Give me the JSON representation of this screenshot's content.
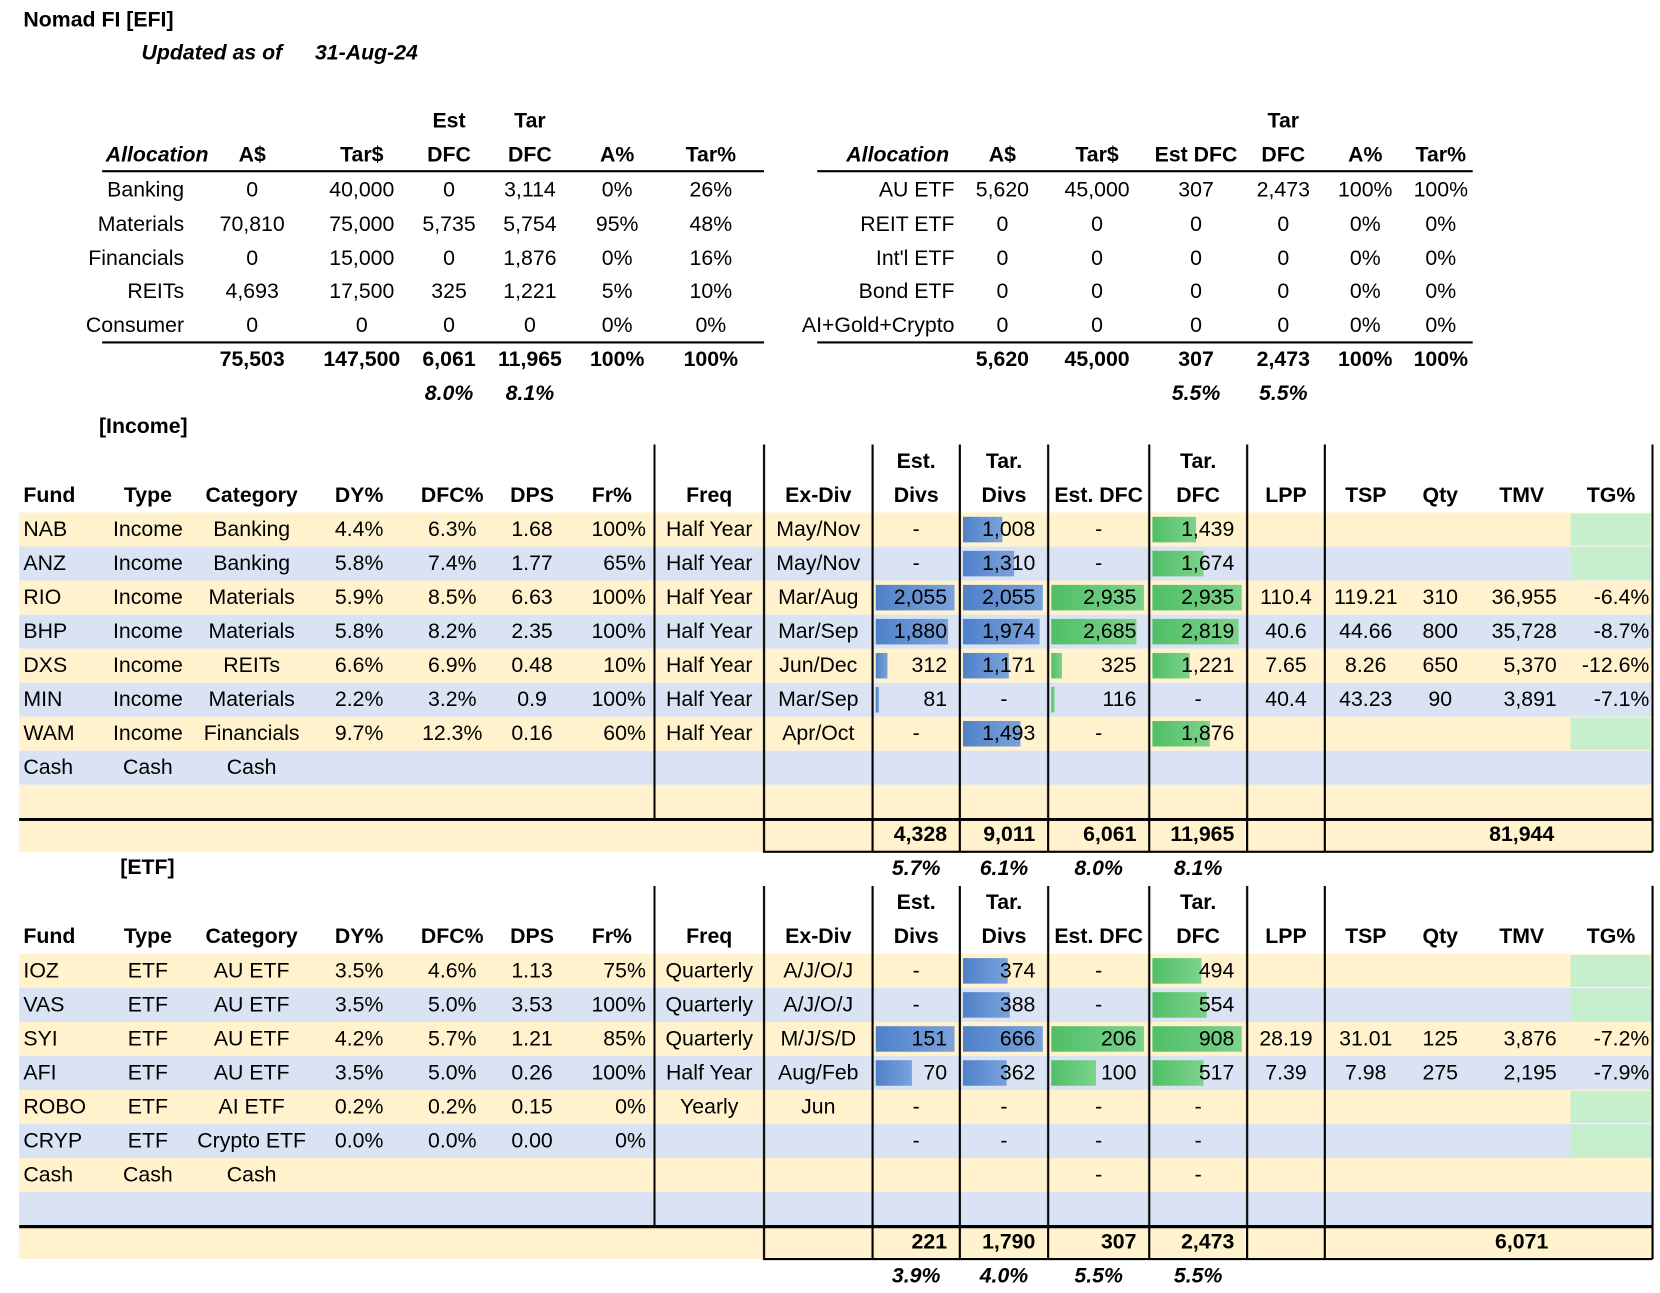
{
  "header": {
    "title": "Nomad FI [EFI]",
    "updated_label": "Updated as of",
    "updated_date": "31-Aug-24"
  },
  "allocation_tables": [
    {
      "headers": [
        "Allocation",
        "A$",
        "Tar$",
        "Est DFC",
        "Tar DFC",
        "A%",
        "Tar%"
      ],
      "rows": [
        [
          "Banking",
          "0",
          "40,000",
          "0",
          "3,114",
          "0%",
          "26%"
        ],
        [
          "Materials",
          "70,810",
          "75,000",
          "5,735",
          "5,754",
          "95%",
          "48%"
        ],
        [
          "Financials",
          "0",
          "15,000",
          "0",
          "1,876",
          "0%",
          "16%"
        ],
        [
          "REITs",
          "4,693",
          "17,500",
          "325",
          "1,221",
          "5%",
          "10%"
        ],
        [
          "Consumer",
          "0",
          "0",
          "0",
          "0",
          "0%",
          "0%"
        ]
      ],
      "totals": [
        "75,503",
        "147,500",
        "6,061",
        "11,965",
        "100%",
        "100%"
      ],
      "total_pcts": [
        "8.0%",
        "8.1%"
      ]
    },
    {
      "headers": [
        "Allocation",
        "A$",
        "Tar$",
        "Est DFC",
        "Tar DFC",
        "A%",
        "Tar%"
      ],
      "rows": [
        [
          "AU ETF",
          "5,620",
          "45,000",
          "307",
          "2,473",
          "100%",
          "100%"
        ],
        [
          "REIT ETF",
          "0",
          "0",
          "0",
          "0",
          "0%",
          "0%"
        ],
        [
          "Int'l ETF",
          "0",
          "0",
          "0",
          "0",
          "0%",
          "0%"
        ],
        [
          "Bond ETF",
          "0",
          "0",
          "0",
          "0",
          "0%",
          "0%"
        ],
        [
          "AI+Gold+Crypto",
          "0",
          "0",
          "0",
          "0",
          "0%",
          "0%"
        ]
      ],
      "totals": [
        "5,620",
        "45,000",
        "307",
        "2,473",
        "100%",
        "100%"
      ],
      "total_pcts": [
        "5.5%",
        "5.5%"
      ]
    }
  ],
  "income": {
    "label": "[Income]",
    "headers": [
      "Fund",
      "Type",
      "Category",
      "DY%",
      "DFC%",
      "DPS",
      "Fr%",
      "Freq",
      "Ex-Div",
      "Est. Divs",
      "Tar. Divs",
      "Est. DFC",
      "Tar. DFC",
      "LPP",
      "TSP",
      "Qty",
      "TMV",
      "TG%"
    ],
    "rows": [
      [
        "NAB",
        "Income",
        "Banking",
        "4.4%",
        "6.3%",
        "1.68",
        "100%",
        "Half Year",
        "May/Nov",
        "-",
        "1,008",
        "-",
        "1,439"
      ],
      [
        "ANZ",
        "Income",
        "Banking",
        "5.8%",
        "7.4%",
        "1.77",
        "65%",
        "Half Year",
        "May/Nov",
        "-",
        "1,310",
        "-",
        "1,674"
      ],
      [
        "RIO",
        "Income",
        "Materials",
        "5.9%",
        "8.5%",
        "6.63",
        "100%",
        "Half Year",
        "Mar/Aug",
        "2,055",
        "2,055",
        "2,935",
        "2,935",
        "110.4",
        "119.21",
        "310",
        "36,955",
        "-6.4%"
      ],
      [
        "BHP",
        "Income",
        "Materials",
        "5.8%",
        "8.2%",
        "2.35",
        "100%",
        "Half Year",
        "Mar/Sep",
        "1,880",
        "1,974",
        "2,685",
        "2,819",
        "40.6",
        "44.66",
        "800",
        "35,728",
        "-8.7%"
      ],
      [
        "DXS",
        "Income",
        "REITs",
        "6.6%",
        "6.9%",
        "0.48",
        "10%",
        "Half Year",
        "Jun/Dec",
        "312",
        "1,171",
        "325",
        "1,221",
        "7.65",
        "8.26",
        "650",
        "5,370",
        "-12.6%"
      ],
      [
        "MIN",
        "Income",
        "Materials",
        "2.2%",
        "3.2%",
        "0.9",
        "100%",
        "Half Year",
        "Mar/Sep",
        "81",
        "-",
        "116",
        "-",
        "40.4",
        "43.23",
        "90",
        "3,891",
        "-7.1%"
      ],
      [
        "WAM",
        "Income",
        "Financials",
        "9.7%",
        "12.3%",
        "0.16",
        "60%",
        "Half Year",
        "Apr/Oct",
        "-",
        "1,493",
        "-",
        "1,876"
      ],
      [
        "Cash",
        "Cash",
        "Cash"
      ]
    ],
    "totals": [
      "4,328",
      "9,011",
      "6,061",
      "11,965"
    ],
    "total_tmv": "81,944",
    "total_pcts": [
      "5.7%",
      "6.1%",
      "8.0%",
      "8.1%"
    ]
  },
  "etf": {
    "label": "[ETF]",
    "headers": [
      "Fund",
      "Type",
      "Category",
      "DY%",
      "DFC%",
      "DPS",
      "Fr%",
      "Freq",
      "Ex-Div",
      "Est. Divs",
      "Tar. Divs",
      "Est. DFC",
      "Tar. DFC",
      "LPP",
      "TSP",
      "Qty",
      "TMV",
      "TG%"
    ],
    "rows": [
      [
        "IOZ",
        "ETF",
        "AU ETF",
        "3.5%",
        "4.6%",
        "1.13",
        "75%",
        "Quarterly",
        "A/J/O/J",
        "-",
        "374",
        "-",
        "494"
      ],
      [
        "VAS",
        "ETF",
        "AU ETF",
        "3.5%",
        "5.0%",
        "3.53",
        "100%",
        "Quarterly",
        "A/J/O/J",
        "-",
        "388",
        "-",
        "554"
      ],
      [
        "SYI",
        "ETF",
        "AU ETF",
        "4.2%",
        "5.7%",
        "1.21",
        "85%",
        "Quarterly",
        "M/J/S/D",
        "151",
        "666",
        "206",
        "908",
        "28.19",
        "31.01",
        "125",
        "3,876",
        "-7.2%"
      ],
      [
        "AFI",
        "ETF",
        "AU ETF",
        "3.5%",
        "5.0%",
        "0.26",
        "100%",
        "Half Year",
        "Aug/Feb",
        "70",
        "362",
        "100",
        "517",
        "7.39",
        "7.98",
        "275",
        "2,195",
        "-7.9%"
      ],
      [
        "ROBO",
        "ETF",
        "AI ETF",
        "0.2%",
        "0.2%",
        "0.15",
        "0%",
        "Yearly",
        "Jun",
        "-",
        "-",
        "-",
        "-"
      ],
      [
        "CRYP",
        "ETF",
        "Crypto ETF",
        "0.0%",
        "0.0%",
        "0.00",
        "0%",
        null,
        null,
        "-",
        "-",
        "-",
        "-"
      ],
      [
        "Cash",
        "Cash",
        "Cash",
        null,
        null,
        null,
        null,
        null,
        null,
        null,
        null,
        "-",
        "-"
      ]
    ],
    "totals": [
      "221",
      "1,790",
      "307",
      "2,473"
    ],
    "total_tmv": "6,071",
    "total_pcts": [
      "3.9%",
      "4.0%",
      "5.5%",
      "5.5%"
    ]
  }
}
